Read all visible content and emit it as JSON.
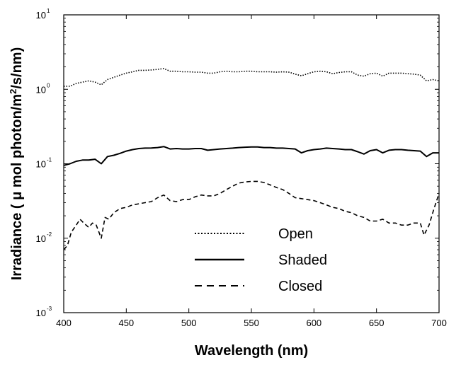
{
  "chart_data": {
    "type": "line",
    "xlabel": "Wavelength (nm)",
    "ylabel_parts": [
      "Irradiance ( ",
      "μ",
      " mol photon/m",
      "2",
      "/s/nm)"
    ],
    "xlim": [
      400,
      700
    ],
    "ylim": [
      0.001,
      10
    ],
    "yscale": "log",
    "x_ticks": [
      "400",
      "450",
      "500",
      "550",
      "600",
      "650",
      "700"
    ],
    "y_ticks": [
      {
        "base": "10",
        "exp": "-3"
      },
      {
        "base": "10",
        "exp": "-2"
      },
      {
        "base": "10",
        "exp": "-1"
      },
      {
        "base": "10",
        "exp": "0"
      },
      {
        "base": "10",
        "exp": "1"
      }
    ],
    "legend_position": "lower-center",
    "grid": false,
    "series": [
      {
        "name": "Open",
        "style": "dotted",
        "color": "#000000",
        "x": [
          400,
          405,
          410,
          415,
          420,
          425,
          430,
          435,
          440,
          445,
          450,
          455,
          460,
          465,
          470,
          475,
          480,
          485,
          490,
          495,
          500,
          505,
          510,
          515,
          520,
          525,
          530,
          535,
          540,
          545,
          550,
          555,
          560,
          565,
          570,
          575,
          580,
          585,
          590,
          595,
          600,
          605,
          610,
          615,
          620,
          625,
          630,
          635,
          640,
          645,
          650,
          655,
          660,
          665,
          670,
          675,
          680,
          685,
          690,
          695,
          700
        ],
        "values": [
          1.1,
          1.1,
          1.2,
          1.25,
          1.3,
          1.25,
          1.15,
          1.35,
          1.45,
          1.55,
          1.65,
          1.72,
          1.8,
          1.8,
          1.82,
          1.85,
          1.9,
          1.75,
          1.75,
          1.72,
          1.72,
          1.7,
          1.7,
          1.65,
          1.65,
          1.72,
          1.75,
          1.72,
          1.72,
          1.75,
          1.75,
          1.72,
          1.72,
          1.72,
          1.7,
          1.72,
          1.7,
          1.6,
          1.52,
          1.62,
          1.72,
          1.75,
          1.72,
          1.62,
          1.68,
          1.72,
          1.72,
          1.55,
          1.5,
          1.62,
          1.65,
          1.5,
          1.65,
          1.65,
          1.65,
          1.62,
          1.6,
          1.55,
          1.3,
          1.35,
          1.3
        ]
      },
      {
        "name": "Shaded",
        "style": "solid",
        "color": "#000000",
        "x": [
          400,
          405,
          410,
          415,
          420,
          425,
          430,
          435,
          440,
          445,
          450,
          455,
          460,
          465,
          470,
          475,
          480,
          485,
          490,
          495,
          500,
          505,
          510,
          515,
          520,
          525,
          530,
          535,
          540,
          545,
          550,
          555,
          560,
          565,
          570,
          575,
          580,
          585,
          590,
          595,
          600,
          605,
          610,
          615,
          620,
          625,
          630,
          635,
          640,
          645,
          650,
          655,
          660,
          665,
          670,
          675,
          680,
          685,
          690,
          695,
          700
        ],
        "values": [
          0.095,
          0.1,
          0.108,
          0.112,
          0.112,
          0.115,
          0.1,
          0.125,
          0.13,
          0.138,
          0.148,
          0.155,
          0.16,
          0.162,
          0.163,
          0.165,
          0.17,
          0.158,
          0.16,
          0.158,
          0.158,
          0.16,
          0.16,
          0.152,
          0.155,
          0.158,
          0.16,
          0.162,
          0.165,
          0.167,
          0.168,
          0.168,
          0.165,
          0.165,
          0.162,
          0.162,
          0.16,
          0.158,
          0.14,
          0.15,
          0.155,
          0.158,
          0.162,
          0.16,
          0.158,
          0.155,
          0.155,
          0.145,
          0.135,
          0.15,
          0.155,
          0.14,
          0.152,
          0.155,
          0.155,
          0.152,
          0.15,
          0.148,
          0.125,
          0.14,
          0.14
        ]
      },
      {
        "name": "Closed",
        "style": "dashed",
        "color": "#000000",
        "x": [
          400,
          403,
          406,
          410,
          413,
          416,
          420,
          423,
          426,
          430,
          433,
          436,
          440,
          445,
          450,
          455,
          460,
          465,
          470,
          475,
          480,
          485,
          490,
          495,
          500,
          505,
          510,
          515,
          520,
          525,
          530,
          535,
          540,
          545,
          550,
          555,
          560,
          565,
          570,
          575,
          580,
          585,
          590,
          595,
          600,
          605,
          610,
          615,
          620,
          625,
          630,
          635,
          640,
          645,
          650,
          655,
          660,
          665,
          670,
          675,
          680,
          685,
          688,
          692,
          696,
          700
        ],
        "values": [
          0.007,
          0.008,
          0.012,
          0.015,
          0.018,
          0.016,
          0.014,
          0.016,
          0.015,
          0.01,
          0.019,
          0.018,
          0.022,
          0.025,
          0.026,
          0.028,
          0.029,
          0.03,
          0.031,
          0.035,
          0.038,
          0.032,
          0.031,
          0.033,
          0.033,
          0.036,
          0.038,
          0.037,
          0.037,
          0.04,
          0.045,
          0.05,
          0.055,
          0.057,
          0.058,
          0.058,
          0.056,
          0.052,
          0.048,
          0.045,
          0.04,
          0.035,
          0.034,
          0.033,
          0.032,
          0.03,
          0.028,
          0.026,
          0.025,
          0.023,
          0.022,
          0.02,
          0.019,
          0.017,
          0.017,
          0.018,
          0.016,
          0.016,
          0.015,
          0.015,
          0.016,
          0.016,
          0.011,
          0.015,
          0.025,
          0.04
        ]
      }
    ]
  }
}
